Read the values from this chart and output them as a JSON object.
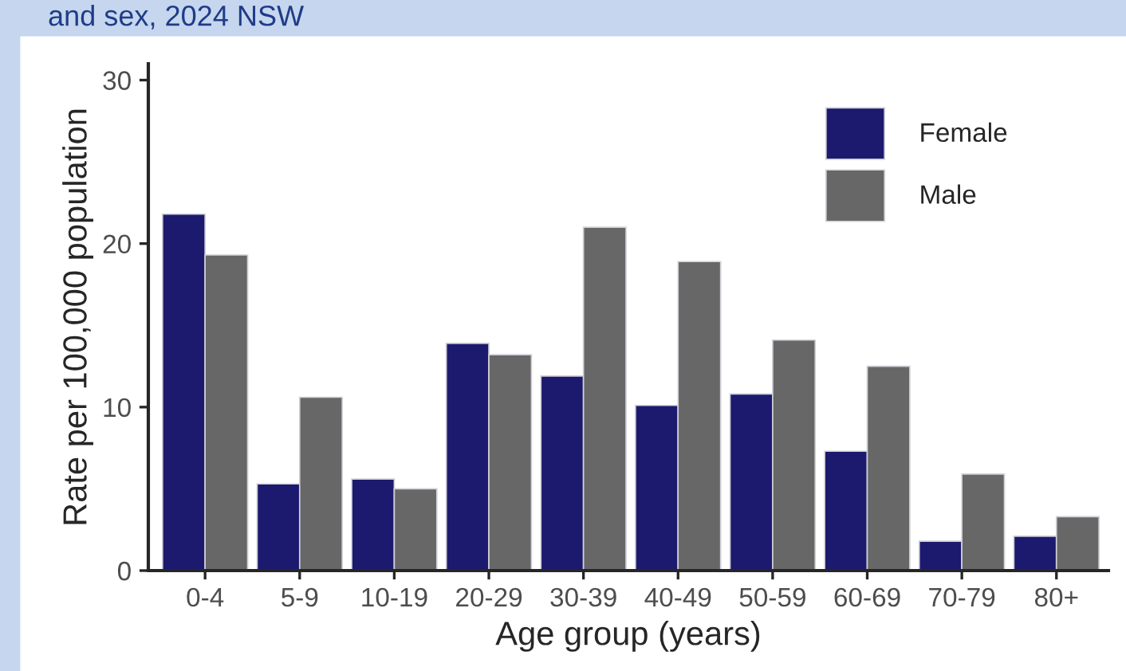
{
  "chart_data": {
    "type": "bar",
    "title": "and sex, 2024 NSW",
    "xlabel": "Age group (years)",
    "ylabel": "Rate per 100,000 population",
    "categories": [
      "0-4",
      "5-9",
      "10-19",
      "20-29",
      "30-39",
      "40-49",
      "50-59",
      "60-69",
      "70-79",
      "80+"
    ],
    "series": [
      {
        "name": "Female",
        "color": "#1b1a6e",
        "values": [
          21.8,
          5.3,
          5.6,
          13.9,
          11.9,
          10.1,
          10.8,
          7.3,
          1.8,
          2.1
        ]
      },
      {
        "name": "Male",
        "color": "#676767",
        "values": [
          19.3,
          10.6,
          5.0,
          13.2,
          21.0,
          18.9,
          14.1,
          12.5,
          5.9,
          3.3
        ]
      }
    ],
    "ylim": [
      0,
      31
    ],
    "yticks": [
      0,
      10,
      20,
      30
    ],
    "grid": false,
    "legend": "top right"
  }
}
